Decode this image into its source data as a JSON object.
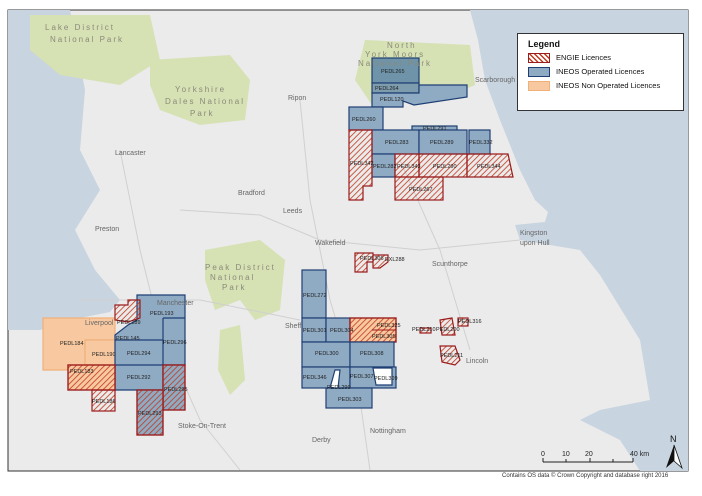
{
  "legend": {
    "title": "Legend",
    "items": [
      {
        "label": "ENGIE Licences",
        "color": "#c0391f"
      },
      {
        "label": "INEOS Operated Licences",
        "color": "#8fabc4"
      },
      {
        "label": "INEOS Non Operated Licences",
        "color": "#f8c9a0"
      }
    ]
  },
  "parks": {
    "lake": [
      "Lake District",
      "National Park"
    ],
    "dales": [
      "Yorkshire",
      "Dales National",
      "Park"
    ],
    "moors": [
      "North",
      "York Moors",
      "National Park"
    ],
    "peak": [
      "Peak District",
      "National",
      "Park"
    ]
  },
  "places": {
    "scarborough": "Scarborough",
    "ripon": "Ripon",
    "lancaster": "Lancaster",
    "bradford": "Bradford",
    "leeds": "Leeds",
    "preston": "Preston",
    "wakefield": "Wakefield",
    "kingston": "Kingston",
    "upon_hull": "upon Hull",
    "scunthorpe": "Scunthorpe",
    "liverpool": "Liverpool",
    "manchester": "Manchester",
    "sheffield": "Sheff",
    "lincoln": "Lincoln",
    "stoke": "Stoke-On-Trent",
    "derby": "Derby",
    "nottingham": "Nottingham"
  },
  "licences": {
    "l265": "PEDL265",
    "l264": "PEDL264",
    "l120": "PEDL120",
    "l260": "PEDL260",
    "l291": "PEDL291",
    "l283": "PEDL283",
    "l289": "PEDL289",
    "l332": "PEDL332",
    "l282": "PEDL282",
    "l343": "PEDL343",
    "l290": "PEDL290",
    "l344": "PEDL344",
    "l267": "PEDL267",
    "l342": "PEDL342",
    "l193": "PEDL193",
    "l145": "PEDL145",
    "l296": "PEDL296",
    "l294": "PEDL294",
    "l292": "PEDL292",
    "l184": "PEDL184",
    "l190": "PEDL190",
    "l183": "PEDL183",
    "l189": "PEDL189",
    "l186": "PEDL186",
    "l295": "PEDL295",
    "l293": "PEDL293",
    "l272": "PEDL272",
    "l301": "PEDL301",
    "l304": "PEDL304",
    "l305": "PEDL305",
    "l300": "PEDL300",
    "l308": "PEDL308",
    "l346": "PEDL346",
    "l307": "PEDL307",
    "l299": "PEDL299",
    "l309": "PEDL309",
    "l303": "PEDL303",
    "l306": "PEDL306",
    "l316": "PEDL316",
    "l210": "PEDL210",
    "l200": "PEDL200",
    "l211": "PEDL211",
    "l325": "PEDL325",
    "l288": "EXL288"
  },
  "scale": {
    "ticks": [
      "0",
      "10",
      "20",
      "40 km"
    ]
  },
  "north": "N",
  "credit": "Contains OS data © Crown Copyright and database right 2016"
}
